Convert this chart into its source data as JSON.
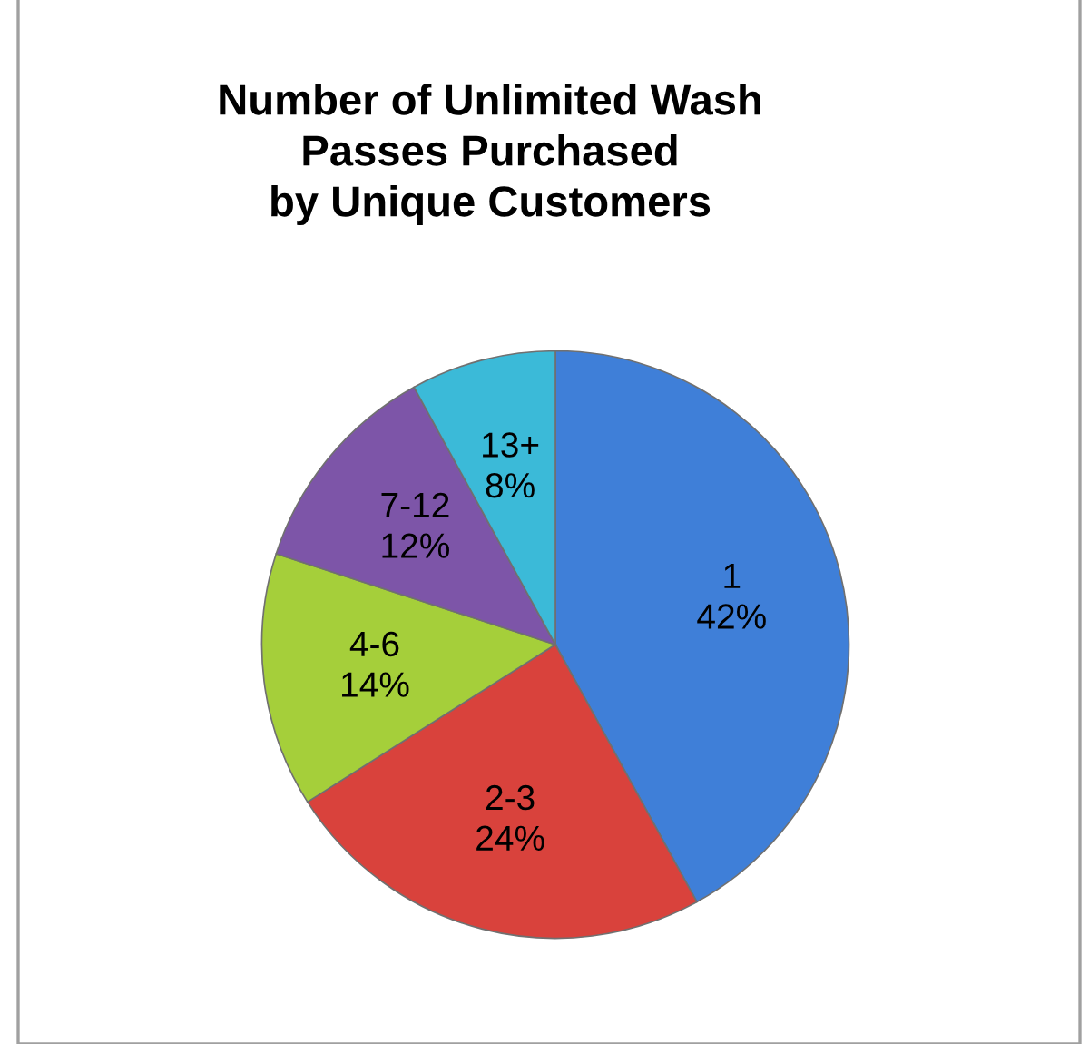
{
  "chart_data": {
    "type": "pie",
    "title": "Number of Unlimited Wash\nPasses Purchased\nby Unique Customers",
    "categories": [
      "1",
      "2-3",
      "4-6",
      "7-12",
      "13+"
    ],
    "values": [
      42,
      24,
      14,
      12,
      8
    ],
    "colors": [
      "#3f7fd8",
      "#d9423c",
      "#a5cf3a",
      "#7d55a8",
      "#3bbad8"
    ],
    "value_labels": [
      "42%",
      "24%",
      "14%",
      "12%",
      "8%"
    ]
  }
}
